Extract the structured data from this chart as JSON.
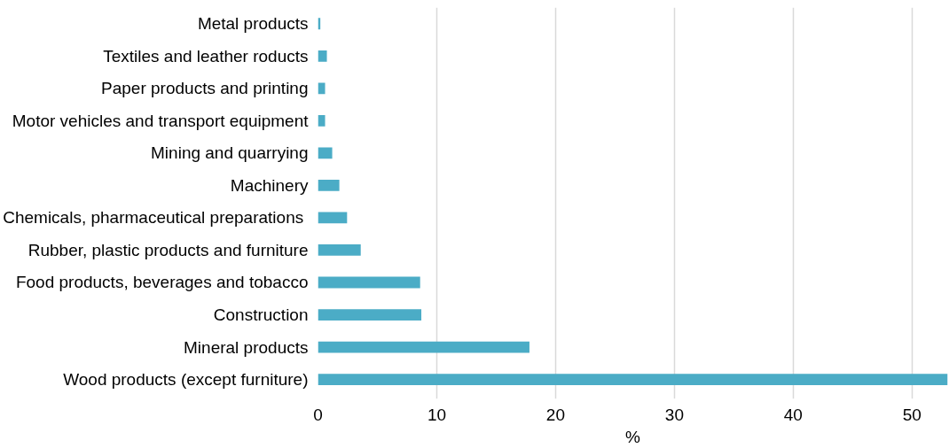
{
  "chart_data": {
    "type": "bar",
    "orientation": "horizontal",
    "xlabel": "%",
    "categories": [
      "Metal products",
      "Textiles and leather roducts",
      "Paper products and printing",
      "Motor vehicles and transport equipment",
      "Mining and quarrying",
      "Machinery",
      "Chemicals,  pharmaceutical preparations",
      "Rubber, plastic products and furniture",
      "Food products, beverages and tobacco",
      "Construction",
      "Mineral products",
      "Wood products (except furniture)"
    ],
    "values": [
      0.2,
      0.75,
      0.6,
      0.6,
      1.2,
      1.8,
      2.45,
      3.6,
      8.6,
      8.7,
      17.8,
      53
    ],
    "color": "#4bacc6",
    "xlim": [
      0,
      53
    ],
    "xticks": [
      0,
      10,
      20,
      30,
      40,
      50
    ],
    "grid": "x"
  }
}
